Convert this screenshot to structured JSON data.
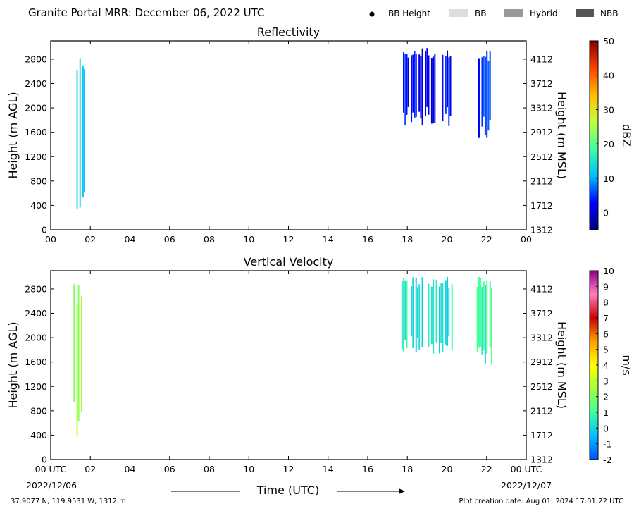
{
  "header": {
    "title": "Granite Portal MRR:  December 06, 2022 UTC",
    "legend": [
      {
        "label": "BB Height",
        "swatch": "dot",
        "color": "#000000"
      },
      {
        "label": "BB",
        "swatch": "rect",
        "color": "#dddddd"
      },
      {
        "label": "Hybrid",
        "swatch": "rect",
        "color": "#999999"
      },
      {
        "label": "NBB",
        "swatch": "rect",
        "color": "#555555"
      }
    ]
  },
  "footer": {
    "location": "37.9077 N, 119.9531 W, 1312 m",
    "creation": "Plot creation date: Aug 01, 2024 17:01:22 UTC"
  },
  "x_axis": {
    "label": "Time (UTC)",
    "range": [
      0,
      24
    ],
    "ticks": [
      0,
      2,
      4,
      6,
      8,
      10,
      12,
      14,
      16,
      18,
      20,
      22,
      24
    ],
    "tick_labels_top": [
      "00",
      "02",
      "04",
      "06",
      "08",
      "10",
      "12",
      "14",
      "16",
      "18",
      "20",
      "22",
      "00"
    ],
    "tick_labels_bottom": [
      "00 UTC",
      "02",
      "04",
      "06",
      "08",
      "10",
      "12",
      "14",
      "16",
      "18",
      "20",
      "22",
      "00 UTC"
    ],
    "start_date": "2022/12/06",
    "end_date": "2022/12/07"
  },
  "chart_data": [
    {
      "type": "heatmap",
      "title": "Reflectivity",
      "ylabel": "Height (m AGL)",
      "ylabel_right": "Height (m MSL)",
      "ylim": [
        0,
        3100
      ],
      "yticks": [
        0,
        400,
        800,
        1200,
        1600,
        2000,
        2400,
        2800
      ],
      "yticks_right": [
        1312,
        1712,
        2112,
        2512,
        2912,
        3312,
        3712,
        4112
      ],
      "colorbar": {
        "label": "dBZ",
        "range": [
          -5,
          50
        ],
        "ticks": [
          0,
          10,
          20,
          30,
          40,
          50
        ],
        "stops": [
          "#00007f",
          "#0000ff",
          "#00bfff",
          "#3fff9f",
          "#c3ff3c",
          "#ffbf00",
          "#ff3f00",
          "#7f0000"
        ]
      },
      "events": [
        {
          "start": 1.15,
          "end": 1.75,
          "bottom": 300,
          "top": 2900,
          "value": 11
        },
        {
          "start": 17.7,
          "end": 20.3,
          "bottom": 1700,
          "top": 3000,
          "value": 3
        },
        {
          "start": 21.5,
          "end": 22.3,
          "bottom": 1500,
          "top": 3000,
          "value": 5
        }
      ]
    },
    {
      "type": "heatmap",
      "title": "Vertical Velocity",
      "ylabel": "Height (m AGL)",
      "ylabel_right": "Height (m MSL)",
      "ylim": [
        0,
        3100
      ],
      "yticks": [
        0,
        400,
        800,
        1200,
        1600,
        2000,
        2400,
        2800
      ],
      "yticks_right": [
        1312,
        1712,
        2112,
        2512,
        2912,
        3312,
        3712,
        4112
      ],
      "colorbar": {
        "label": "m/s",
        "range": [
          -2,
          10
        ],
        "ticks": [
          -2,
          -1,
          0,
          1,
          2,
          3,
          4,
          5,
          6,
          7,
          8,
          9,
          10
        ],
        "stops": [
          "#0050ff",
          "#00bfff",
          "#3fffa0",
          "#a0ff40",
          "#ffff00",
          "#ffa000",
          "#cc0000",
          "#ff80c0",
          "#8b008b"
        ]
      },
      "events": [
        {
          "start": 1.15,
          "end": 1.75,
          "bottom": 300,
          "top": 2900,
          "value": 2.5
        },
        {
          "start": 17.7,
          "end": 20.3,
          "bottom": 1700,
          "top": 3000,
          "value": 0.3
        },
        {
          "start": 21.5,
          "end": 22.3,
          "bottom": 1500,
          "top": 3000,
          "value": 0.8
        }
      ]
    }
  ]
}
